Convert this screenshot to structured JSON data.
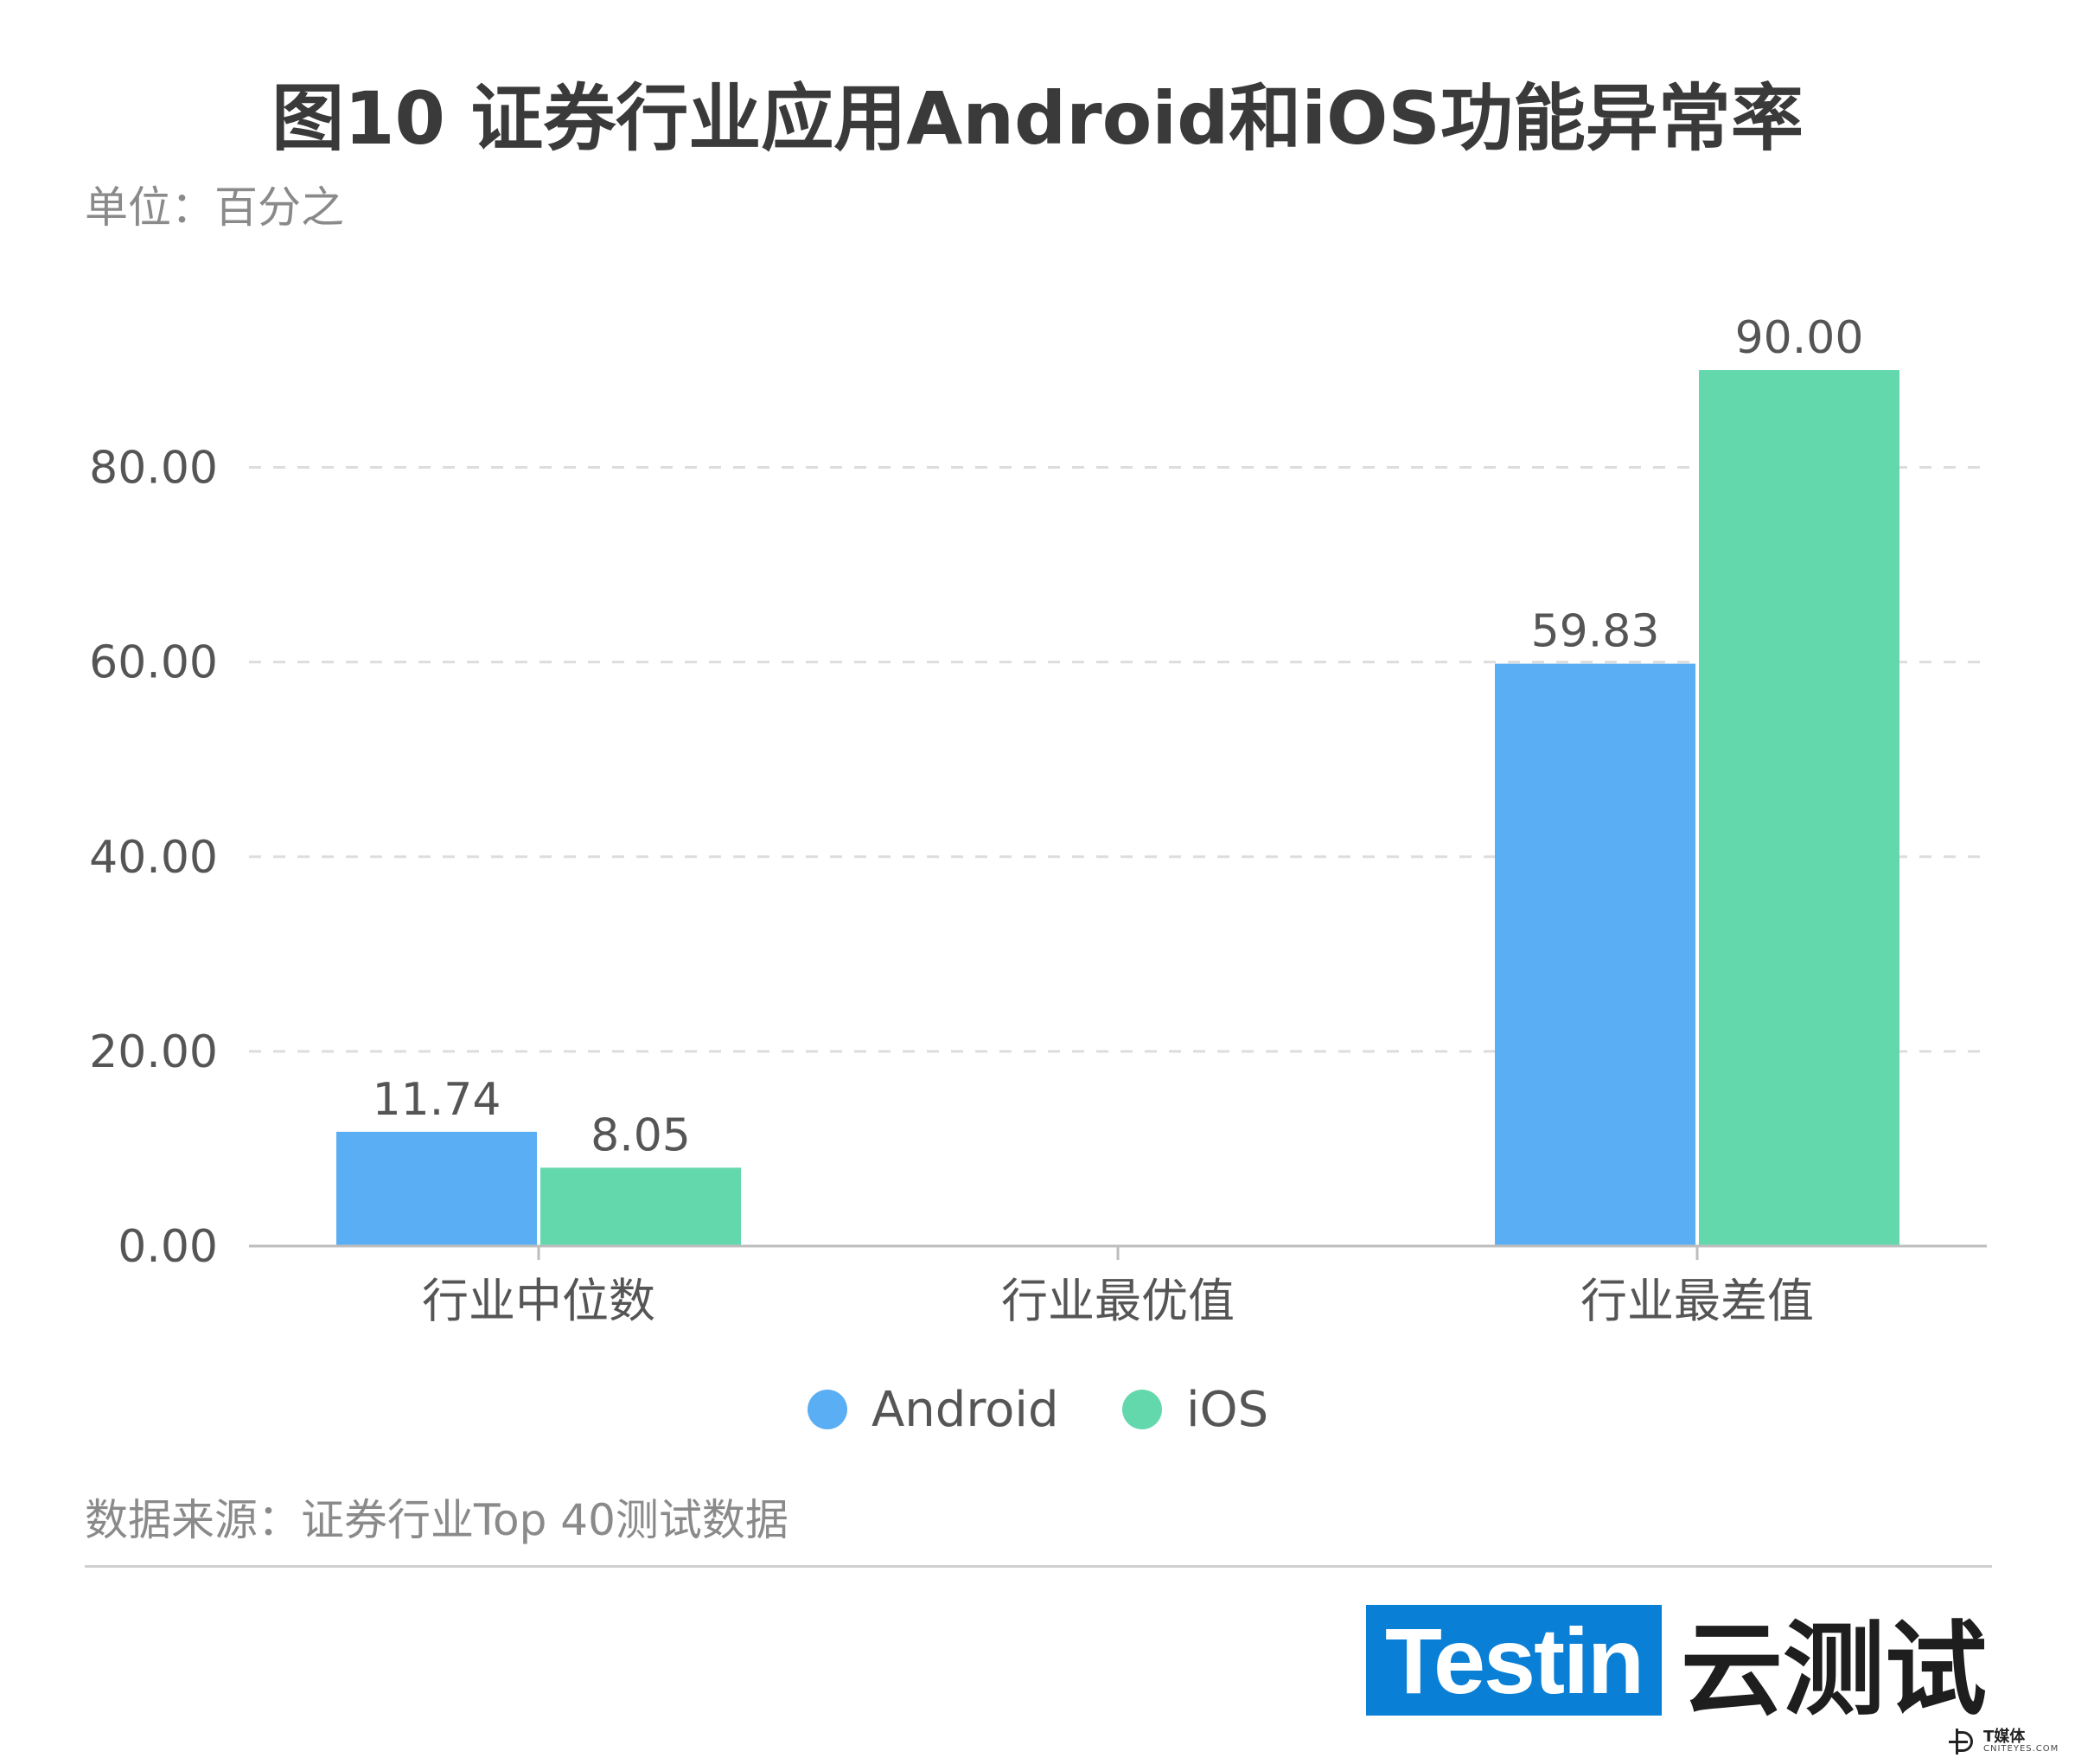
{
  "title": "图10 证券行业应用Android和iOS功能异常率",
  "unit": "单位：百分之",
  "source": "数据来源：证券行业Top 40测试数据",
  "logo": {
    "box_text": "Testin",
    "text": "云测试"
  },
  "watermark": {
    "top": "T媒体",
    "bottom": "CNITEYES.COM"
  },
  "colors": {
    "android": "#5aaef3",
    "ios": "#64d8ad"
  },
  "chart_data": {
    "type": "bar",
    "categories": [
      "行业中位数",
      "行业最优值",
      "行业最差值"
    ],
    "series": [
      {
        "name": "Android",
        "values": [
          11.74,
          0,
          59.83
        ],
        "labels": [
          "11.74",
          "",
          "59.83"
        ]
      },
      {
        "name": "iOS",
        "values": [
          8.05,
          0,
          90.0
        ],
        "labels": [
          "8.05",
          "",
          "90.00"
        ]
      }
    ],
    "ylim": [
      0,
      90
    ],
    "yticks": [
      0,
      20,
      40,
      60,
      80
    ],
    "ytick_labels": [
      "0.00",
      "20.00",
      "40.00",
      "60.00",
      "80.00"
    ],
    "grid": true,
    "legend": "bottom-center"
  }
}
